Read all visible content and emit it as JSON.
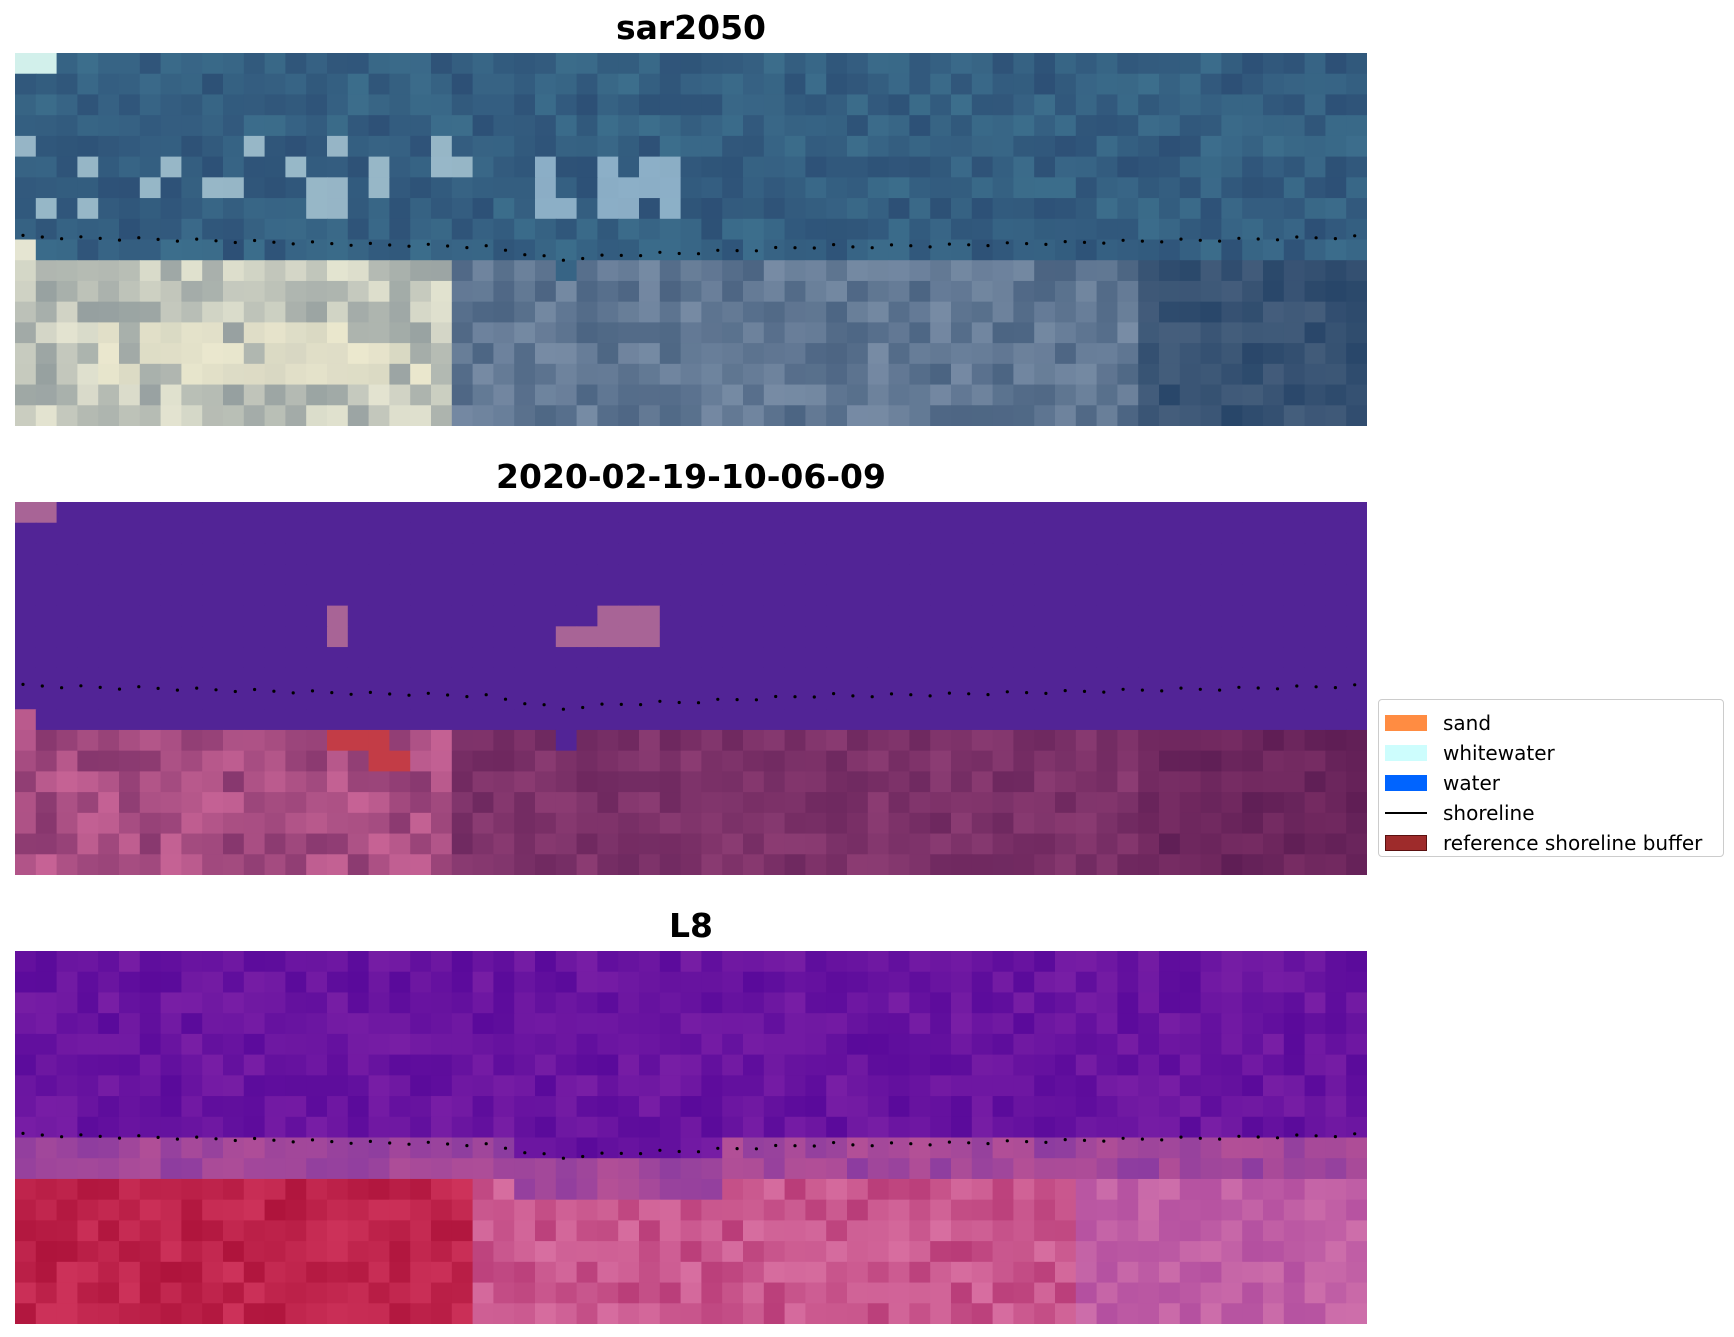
{
  "panels": [
    {
      "id": "rgb",
      "title": "sar2050"
    },
    {
      "id": "classified",
      "title": "2020-02-19-10-06-09"
    },
    {
      "id": "index",
      "title": "L8"
    }
  ],
  "legend": {
    "items": [
      {
        "label": "sand",
        "kind": "patch",
        "color": "#ff8c42"
      },
      {
        "label": "whitewater",
        "kind": "patch",
        "color": "#cdfdfd"
      },
      {
        "label": "water",
        "kind": "patch",
        "color": "#0064ff"
      },
      {
        "label": "shoreline",
        "kind": "line",
        "color": "#000000"
      },
      {
        "label": "reference shoreline buffer",
        "kind": "patch",
        "color": "#9e2b2b"
      }
    ]
  }
}
